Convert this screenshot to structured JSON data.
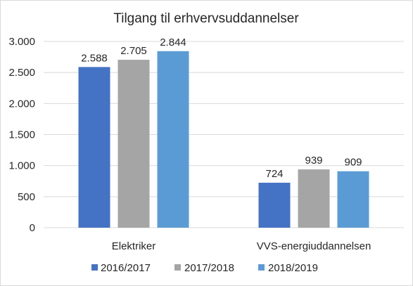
{
  "chart_data": {
    "type": "bar",
    "title": "Tilgang til erhvervsuddannelser",
    "xlabel": "",
    "ylabel": "",
    "categories": [
      "Elektriker",
      "VVS-energiuddannelsen"
    ],
    "series": [
      {
        "name": "2016/2017",
        "values": [
          2588,
          724
        ],
        "labels": [
          "2.588",
          "724"
        ],
        "color": "#4472c4"
      },
      {
        "name": "2017/2018",
        "values": [
          2705,
          939
        ],
        "labels": [
          "2.705",
          "939"
        ],
        "color": "#a5a5a5"
      },
      {
        "name": "2018/2019",
        "values": [
          2844,
          909
        ],
        "labels": [
          "2.844",
          "909"
        ],
        "color": "#5b9bd5"
      }
    ],
    "ylim": [
      0,
      3000
    ],
    "yticks": [
      0,
      500,
      1000,
      1500,
      2000,
      2500,
      3000
    ],
    "ytick_labels": [
      "0",
      "500",
      "1.000",
      "1.500",
      "2.000",
      "2.500",
      "3.000"
    ],
    "grid": true,
    "gridline_color": "#d9d9d9",
    "legend_position": "bottom"
  }
}
